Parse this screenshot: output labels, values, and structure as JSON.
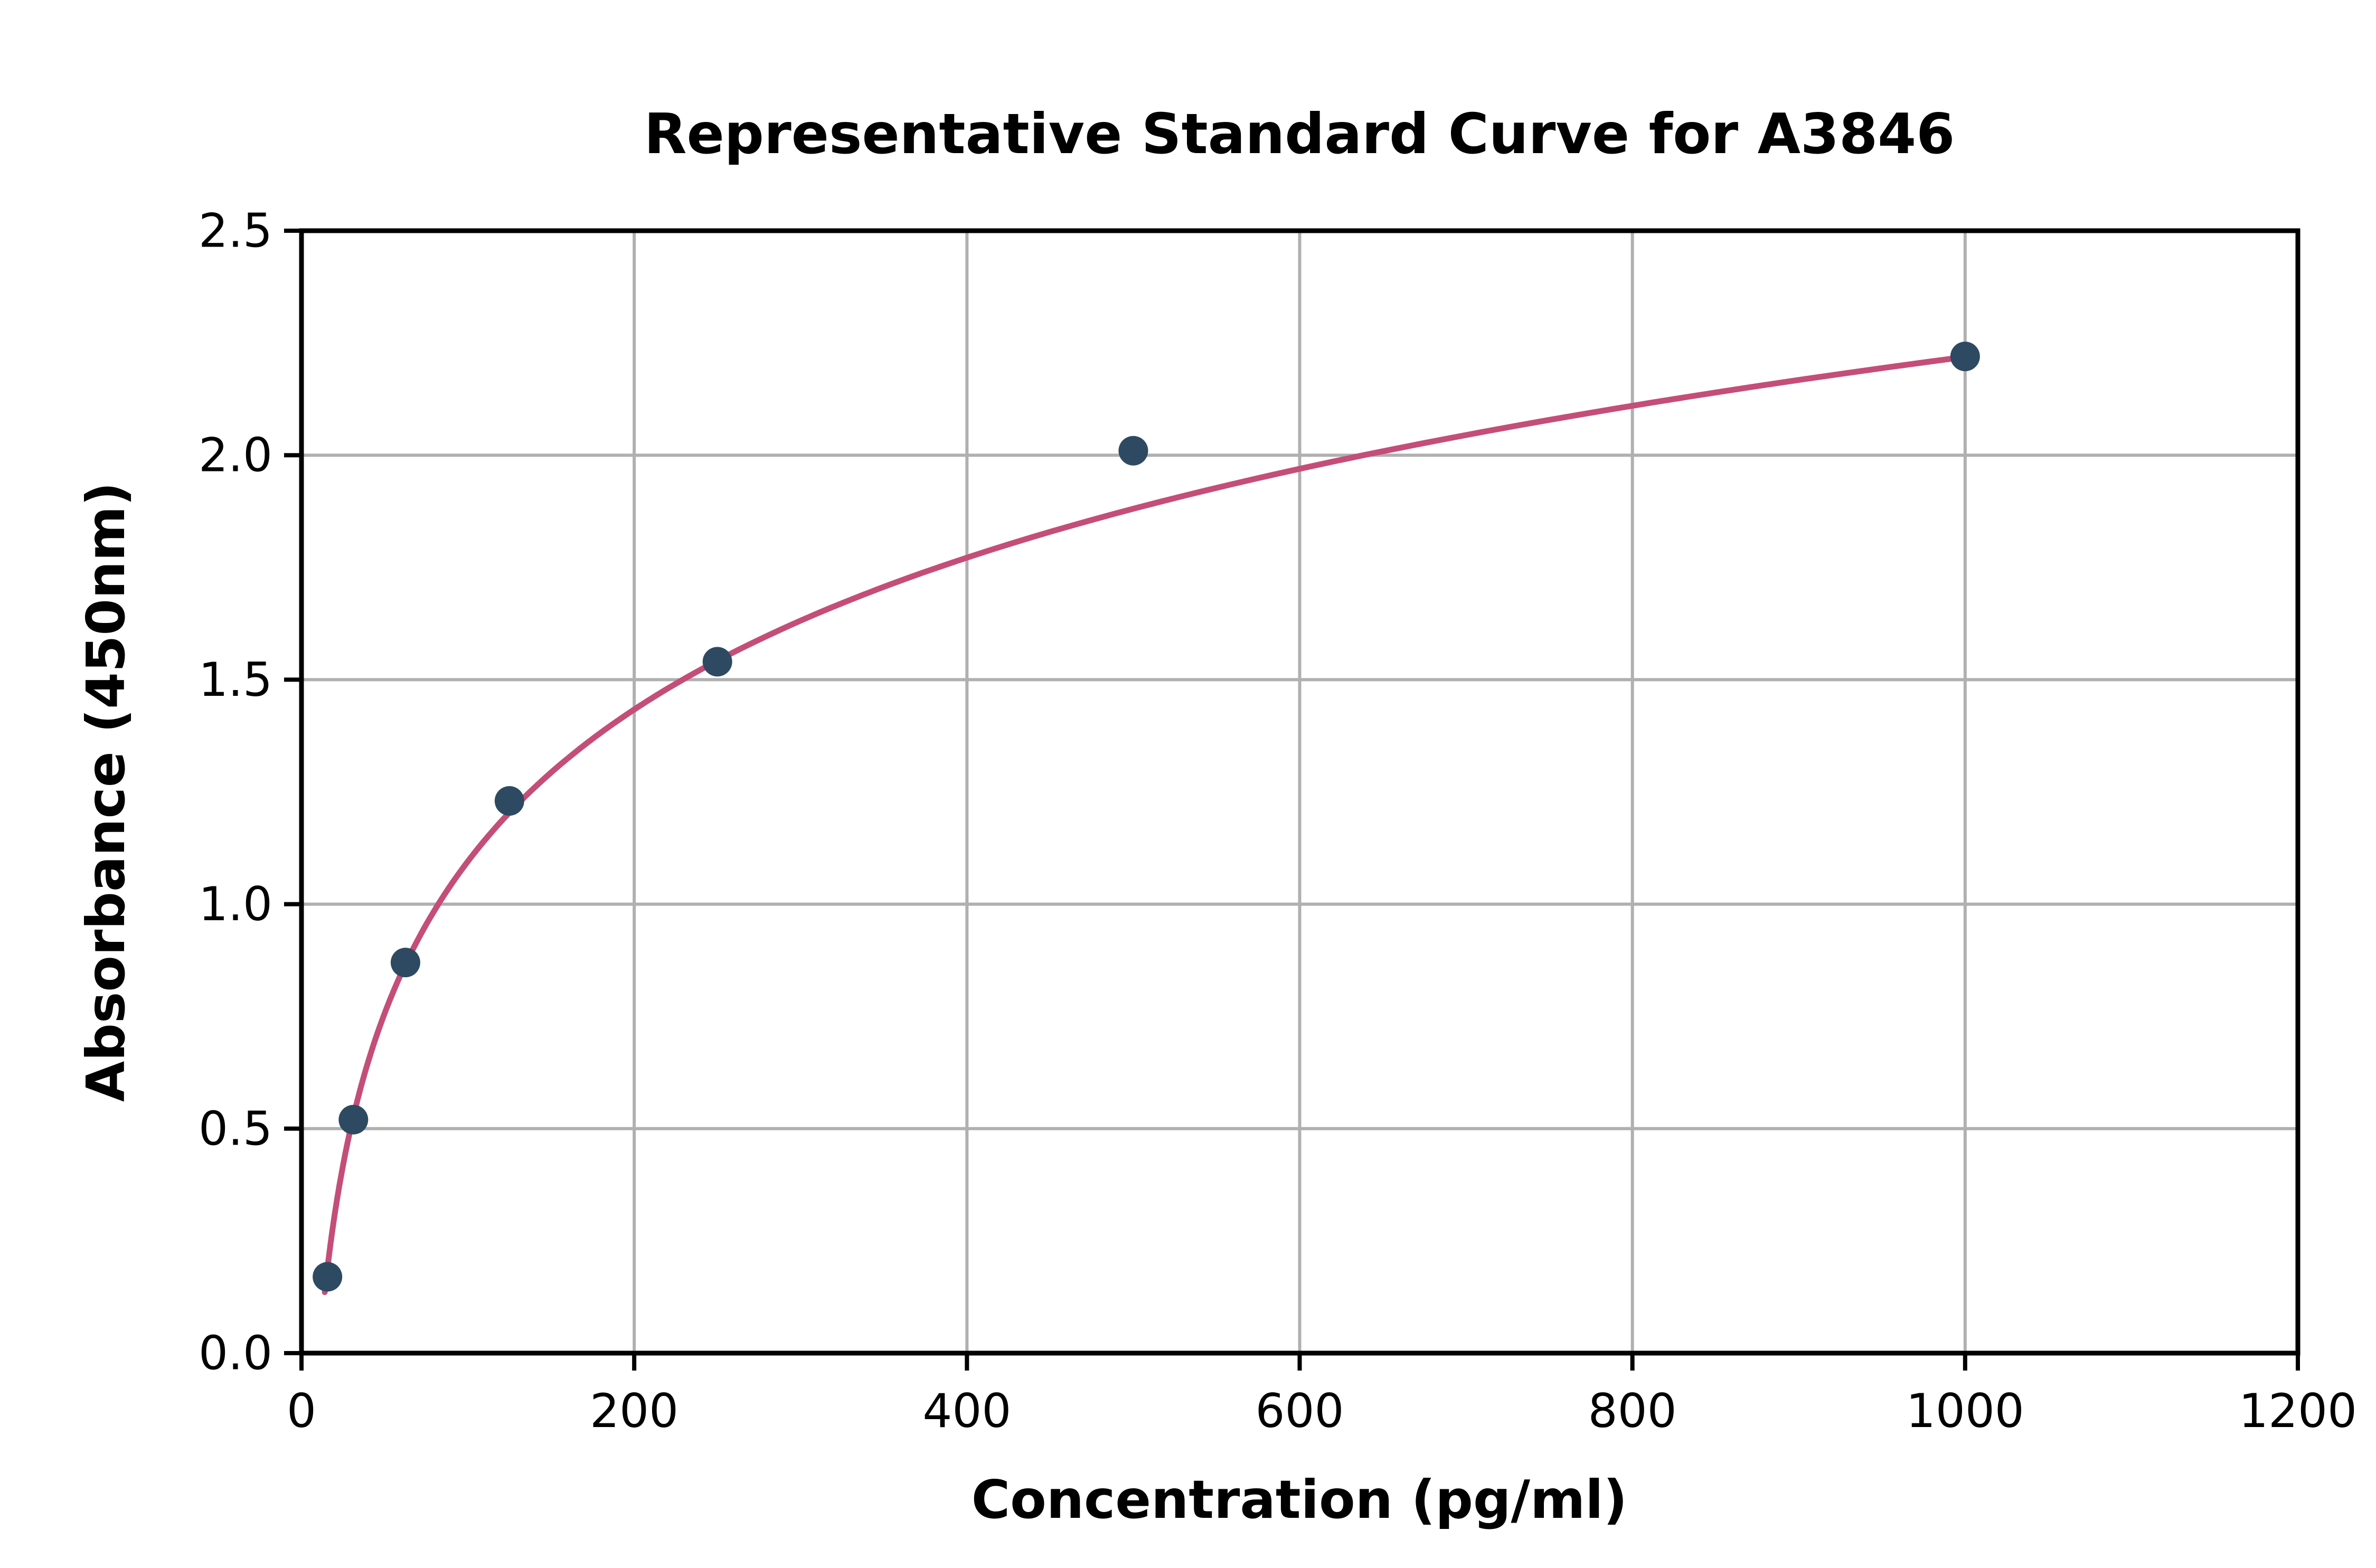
{
  "chart_data": {
    "type": "scatter",
    "title": "Representative Standard Curve for A3846",
    "xlabel": "Concentration (pg/ml)",
    "ylabel": "Absorbance (450nm)",
    "xlim": [
      0,
      1200
    ],
    "ylim": [
      0,
      2.5
    ],
    "xticks": [
      0,
      200,
      400,
      600,
      800,
      1000,
      1200
    ],
    "xtick_labels": [
      "0",
      "200",
      "400",
      "600",
      "800",
      "1000",
      "1200"
    ],
    "yticks": [
      0,
      0.5,
      1.0,
      1.5,
      2.0,
      2.5
    ],
    "ytick_labels": [
      "0.0",
      "0.5",
      "1.0",
      "1.5",
      "2.0",
      "2.5"
    ],
    "grid": true,
    "legend": "none",
    "points": [
      {
        "x": 15.6,
        "y": 0.17
      },
      {
        "x": 31.2,
        "y": 0.52
      },
      {
        "x": 62.5,
        "y": 0.87
      },
      {
        "x": 125,
        "y": 1.23
      },
      {
        "x": 250,
        "y": 1.54
      },
      {
        "x": 500,
        "y": 2.01
      },
      {
        "x": 1000,
        "y": 2.22
      }
    ],
    "fit_curve": {
      "model": "logarithmic",
      "equation": "y = 0.488*ln(x) - 1.152",
      "a": 0.488,
      "b": -1.152,
      "x_start": 14,
      "x_end": 1005
    },
    "colors": {
      "points": "#2e4a62",
      "curve": "#c44e78",
      "grid": "#b0b0b0",
      "axis": "#000000",
      "background": "#ffffff"
    }
  }
}
